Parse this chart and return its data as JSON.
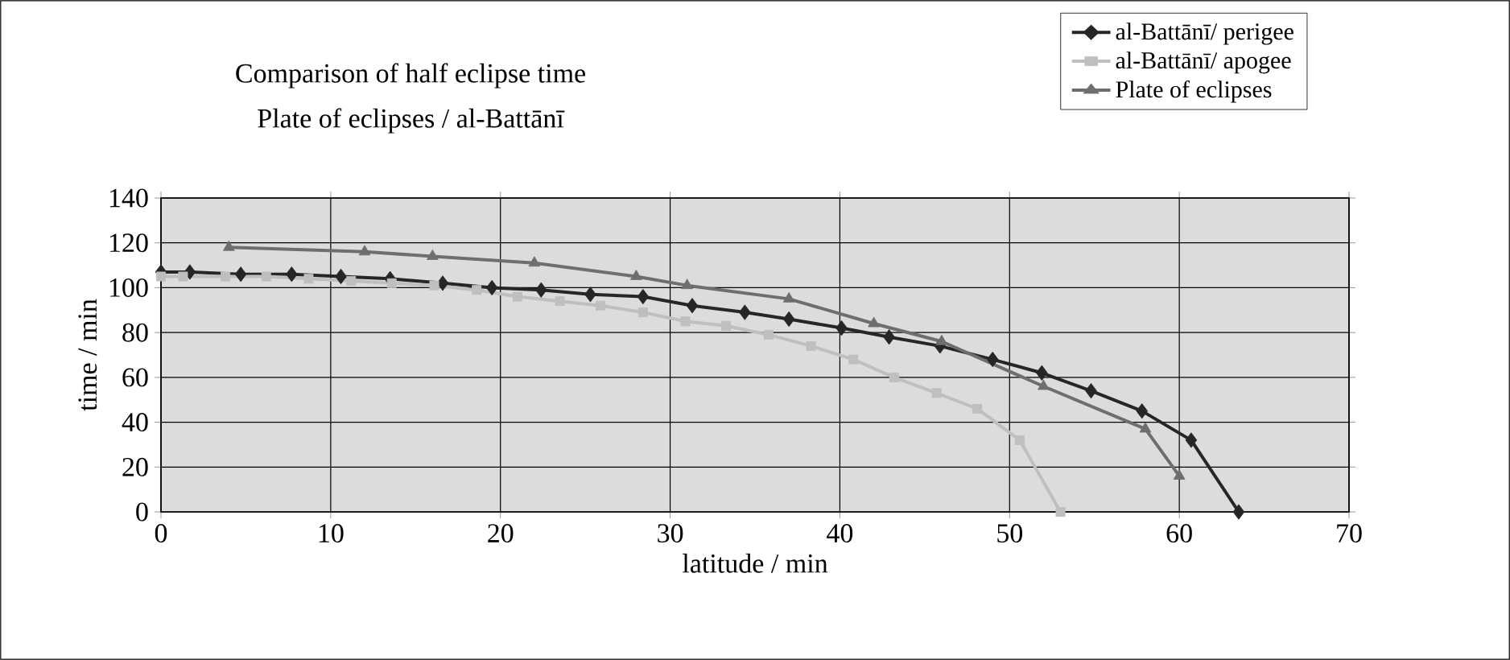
{
  "chart_data": {
    "type": "line",
    "title": "Comparison of half eclipse time",
    "subtitle": "Plate of eclipses / al-Battānī",
    "xlabel": "latitude / min",
    "ylabel": "time / min",
    "xlim": [
      0,
      70
    ],
    "xticks": [
      0,
      10,
      20,
      30,
      40,
      50,
      60,
      70
    ],
    "ylim": [
      0,
      140
    ],
    "yticks": [
      0,
      20,
      40,
      60,
      80,
      100,
      120,
      140
    ],
    "grid": true,
    "legend": "top right",
    "line_style": "solid",
    "series": [
      {
        "name": "al-Battānī/ perigee",
        "color": "#262626",
        "marker": "diamond",
        "x": [
          0,
          1.7,
          4.7,
          7.7,
          10.6,
          13.5,
          16.6,
          19.5,
          22.4,
          25.3,
          28.4,
          31.3,
          34.4,
          37.0,
          40.1,
          42.9,
          45.9,
          49.0,
          51.9,
          54.8,
          57.8,
          60.7,
          63.5
        ],
        "values": [
          107,
          107,
          106,
          106,
          105,
          104,
          102,
          100,
          99,
          97,
          96,
          92,
          89,
          86,
          82,
          78,
          74,
          68,
          62,
          54,
          45,
          32,
          0
        ]
      },
      {
        "name": "al-Battānī/ apogee",
        "color": "#bfbfbf",
        "marker": "square",
        "x": [
          0,
          1.3,
          3.8,
          6.2,
          8.7,
          11.2,
          13.6,
          16.1,
          18.6,
          21.0,
          23.5,
          25.9,
          28.4,
          30.9,
          33.3,
          35.8,
          38.3,
          40.8,
          43.2,
          45.7,
          48.1,
          50.6,
          53.0
        ],
        "values": [
          105,
          105,
          105,
          105,
          104,
          103,
          102,
          101,
          99,
          96,
          94,
          92,
          89,
          85,
          83,
          79,
          74,
          68,
          60,
          53,
          46,
          32,
          0
        ]
      },
      {
        "name": "Plate of eclipses",
        "color": "#6e6e6e",
        "marker": "triangle",
        "x": [
          4,
          12,
          16,
          22,
          28,
          31,
          37,
          42,
          46,
          52,
          58,
          60
        ],
        "values": [
          118,
          116,
          114,
          111,
          105,
          101,
          95,
          84,
          76,
          56,
          37,
          16
        ]
      }
    ]
  }
}
